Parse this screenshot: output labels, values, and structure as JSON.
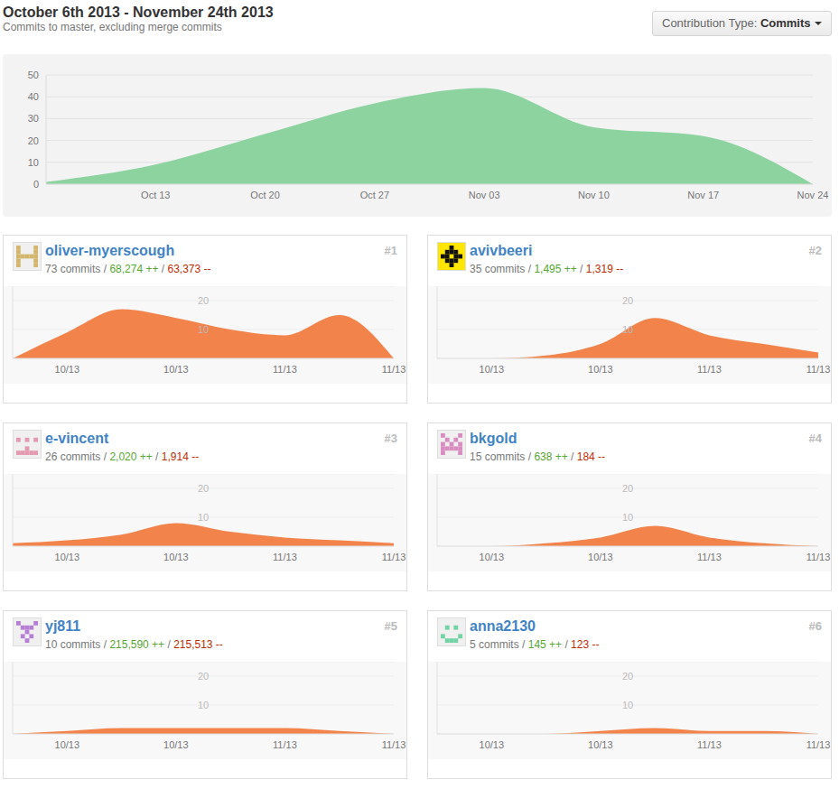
{
  "header": {
    "title": "October 6th 2013 - November 24th 2013",
    "subtitle": "Commits to master, excluding merge commits",
    "button_label": "Contribution Type:",
    "button_value": "Commits"
  },
  "separator": "/",
  "chart_data": [
    {
      "type": "area",
      "categories": [
        null,
        "Oct 13",
        "Oct 20",
        "Oct 27",
        "Nov 03",
        "Nov 10",
        "Nov 17",
        "Nov 24"
      ],
      "values": [
        1,
        9,
        23,
        37,
        44,
        26,
        22,
        0
      ],
      "color": "#8cd3a0",
      "ylim": [
        0,
        50
      ],
      "yticks": [
        0,
        10,
        20,
        30,
        40,
        50
      ],
      "grid": true
    },
    {
      "type": "area",
      "title": "oliver-myerscough",
      "subtitle": [
        "73 commits",
        "68,274 ++",
        "63,373 --"
      ],
      "annotations": [
        "#1"
      ],
      "categories": [
        null,
        "10/13",
        null,
        "10/13",
        null,
        "11/13",
        null,
        "11/13"
      ],
      "values": [
        0,
        9,
        17,
        14,
        10,
        8,
        15,
        0
      ],
      "color": "#f1834b",
      "ylim": [
        0,
        25
      ],
      "yticks": [
        10,
        20
      ],
      "grid": true
    },
    {
      "type": "area",
      "title": "avivbeeri",
      "subtitle": [
        "35 commits",
        "1,495 ++",
        "1,319 --"
      ],
      "annotations": [
        "#2"
      ],
      "categories": [
        null,
        "10/13",
        null,
        "10/13",
        null,
        "11/13",
        null,
        "11/13"
      ],
      "values": [
        0,
        0,
        1,
        5,
        14,
        8,
        5,
        2
      ],
      "color": "#f1834b",
      "ylim": [
        0,
        25
      ],
      "yticks": [
        10,
        20
      ],
      "grid": true
    },
    {
      "type": "area",
      "title": "e-vincent",
      "subtitle": [
        "26 commits",
        "2,020 ++",
        "1,914 --"
      ],
      "annotations": [
        "#3"
      ],
      "categories": [
        null,
        "10/13",
        null,
        "10/13",
        null,
        "11/13",
        null,
        "11/13"
      ],
      "values": [
        1,
        2,
        4,
        8,
        5,
        3,
        2,
        1
      ],
      "color": "#f1834b",
      "ylim": [
        0,
        25
      ],
      "yticks": [
        10,
        20
      ],
      "grid": true
    },
    {
      "type": "area",
      "title": "bkgold",
      "subtitle": [
        "15 commits",
        "638 ++",
        "184 --"
      ],
      "annotations": [
        "#4"
      ],
      "categories": [
        null,
        "10/13",
        null,
        "10/13",
        null,
        "11/13",
        null,
        "11/13"
      ],
      "values": [
        0,
        0,
        1,
        3,
        7,
        3,
        1,
        0
      ],
      "color": "#f1834b",
      "ylim": [
        0,
        25
      ],
      "yticks": [
        10,
        20
      ],
      "grid": true
    },
    {
      "type": "area",
      "title": "yj811",
      "subtitle": [
        "10 commits",
        "215,590 ++",
        "215,513 --"
      ],
      "annotations": [
        "#5"
      ],
      "categories": [
        null,
        "10/13",
        null,
        "10/13",
        null,
        "11/13",
        null,
        "11/13"
      ],
      "values": [
        0,
        1,
        2,
        2,
        2,
        2,
        1,
        0
      ],
      "color": "#f1834b",
      "ylim": [
        0,
        25
      ],
      "yticks": [
        10,
        20
      ],
      "grid": true
    },
    {
      "type": "area",
      "title": "anna2130",
      "subtitle": [
        "5 commits",
        "145 ++",
        "123 --"
      ],
      "annotations": [
        "#6"
      ],
      "categories": [
        null,
        "10/13",
        null,
        "10/13",
        null,
        "11/13",
        null,
        "11/13"
      ],
      "values": [
        0,
        0,
        0,
        1,
        2,
        1,
        1,
        0
      ],
      "color": "#f1834b",
      "ylim": [
        0,
        25
      ],
      "yticks": [
        10,
        20
      ],
      "grid": true
    }
  ]
}
